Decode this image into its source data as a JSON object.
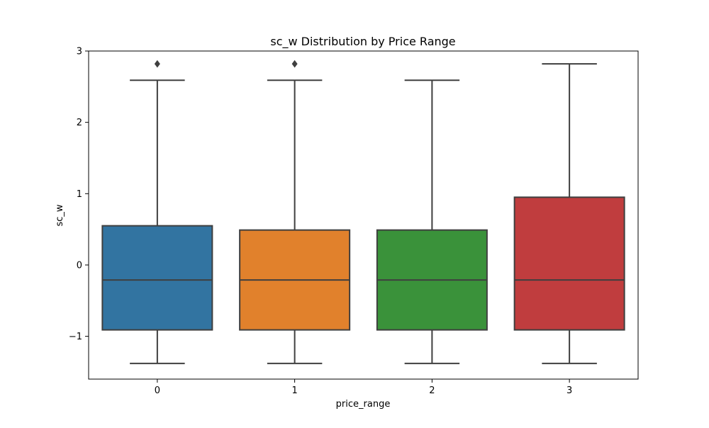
{
  "chart_data": {
    "type": "box",
    "title": "sc_w Distribution by Price Range",
    "xlabel": "price_range",
    "ylabel": "sc_w",
    "ylim": [
      -1.6,
      3.0
    ],
    "yticks": [
      -1,
      0,
      1,
      2,
      3
    ],
    "ytick_labels": [
      "−1",
      "0",
      "1",
      "2",
      "3"
    ],
    "categories": [
      "0",
      "1",
      "2",
      "3"
    ],
    "boxes": [
      {
        "category": "0",
        "whisker_low": -1.38,
        "q1": -0.91,
        "median": -0.21,
        "q3": 0.55,
        "whisker_high": 2.59,
        "outliers": [
          2.82
        ],
        "color": "#3274a1"
      },
      {
        "category": "1",
        "whisker_low": -1.38,
        "q1": -0.91,
        "median": -0.21,
        "q3": 0.49,
        "whisker_high": 2.59,
        "outliers": [
          2.82
        ],
        "color": "#e1812c"
      },
      {
        "category": "2",
        "whisker_low": -1.38,
        "q1": -0.91,
        "median": -0.21,
        "q3": 0.49,
        "whisker_high": 2.59,
        "outliers": [],
        "color": "#3a923a"
      },
      {
        "category": "3",
        "whisker_low": -1.38,
        "q1": -0.91,
        "median": -0.21,
        "q3": 0.95,
        "whisker_high": 2.82,
        "outliers": [],
        "color": "#c03d3e"
      }
    ],
    "grid": false,
    "line_color": "#3f3f3f"
  }
}
